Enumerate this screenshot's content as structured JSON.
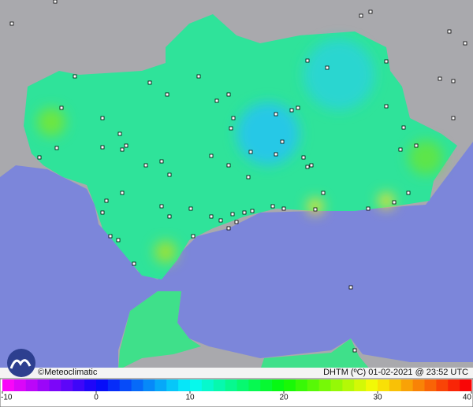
{
  "credit": "©Meteoclimatic",
  "caption": "DHTM (ºC)   01-02-2021 @ 23:52 UTC",
  "colorbar": {
    "range": [
      -10,
      40
    ],
    "ticks": [
      -10,
      0,
      10,
      20,
      30,
      40
    ]
  }
}
